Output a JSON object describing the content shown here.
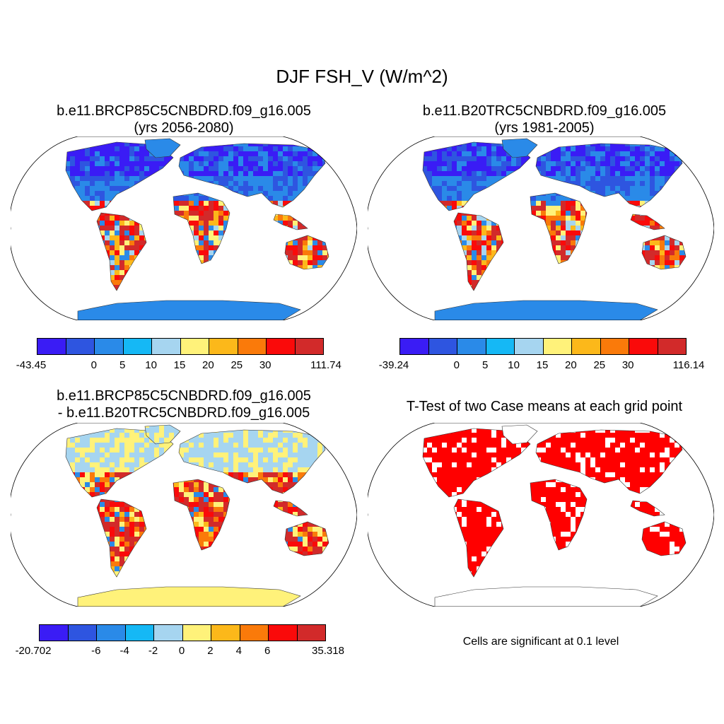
{
  "title": "DJF FSH_V (W/m^2)",
  "colors": [
    "#3a1cf5",
    "#2e55e0",
    "#2a8ae8",
    "#15b8f5",
    "#a6d5f0",
    "#fff27a",
    "#fcb81a",
    "#fa7a0a",
    "#fa0a0a",
    "#d22a2a"
  ],
  "significance_color": "#ff0000",
  "panels": [
    {
      "id": "case1",
      "title_line1": "b.e11.BRCP85C5CNBDRD.f09_g16.005",
      "title_line2": "(yrs 2056-2080)",
      "colorbar_labels": [
        "-43.45",
        "0",
        "5",
        "10",
        "15",
        "20",
        "25",
        "30",
        "111.74"
      ]
    },
    {
      "id": "case2",
      "title_line1": "b.e11.B20TRC5CNBDRD.f09_g16.005",
      "title_line2": "(yrs 1981-2005)",
      "colorbar_labels": [
        "-39.24",
        "0",
        "5",
        "10",
        "15",
        "20",
        "25",
        "30",
        "116.14"
      ]
    },
    {
      "id": "diff",
      "title_line1": "b.e11.BRCP85C5CNBDRD.f09_g16.005",
      "title_line2": "- b.e11.B20TRC5CNBDRD.f09_g16.005",
      "colorbar_labels": [
        "-20.702",
        "-6",
        "-4",
        "-2",
        "0",
        "2",
        "4",
        "6",
        "35.318"
      ]
    },
    {
      "id": "ttest",
      "title_line1": "T-Test of two Case means at each grid point",
      "note": "Cells are significant at 0.1 level"
    }
  ]
}
